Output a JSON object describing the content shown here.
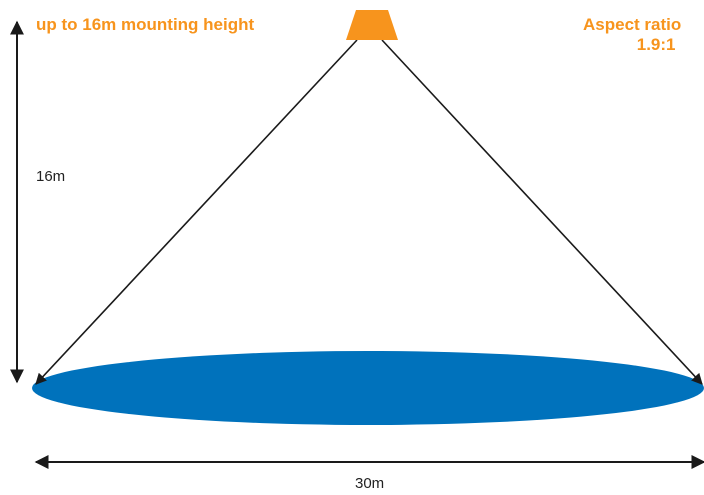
{
  "labels": {
    "mounting_height": "up to 16m mounting height",
    "aspect_ratio_line1": "Aspect ratio",
    "aspect_ratio_line2": "1.9:1",
    "height_dimension": "16m",
    "width_dimension": "30m"
  },
  "colors": {
    "accent": "#f7941d",
    "coverage": "#0072bc",
    "line": "#1a1a1a"
  },
  "icons": {
    "light_fixture": "light-fixture-icon"
  }
}
